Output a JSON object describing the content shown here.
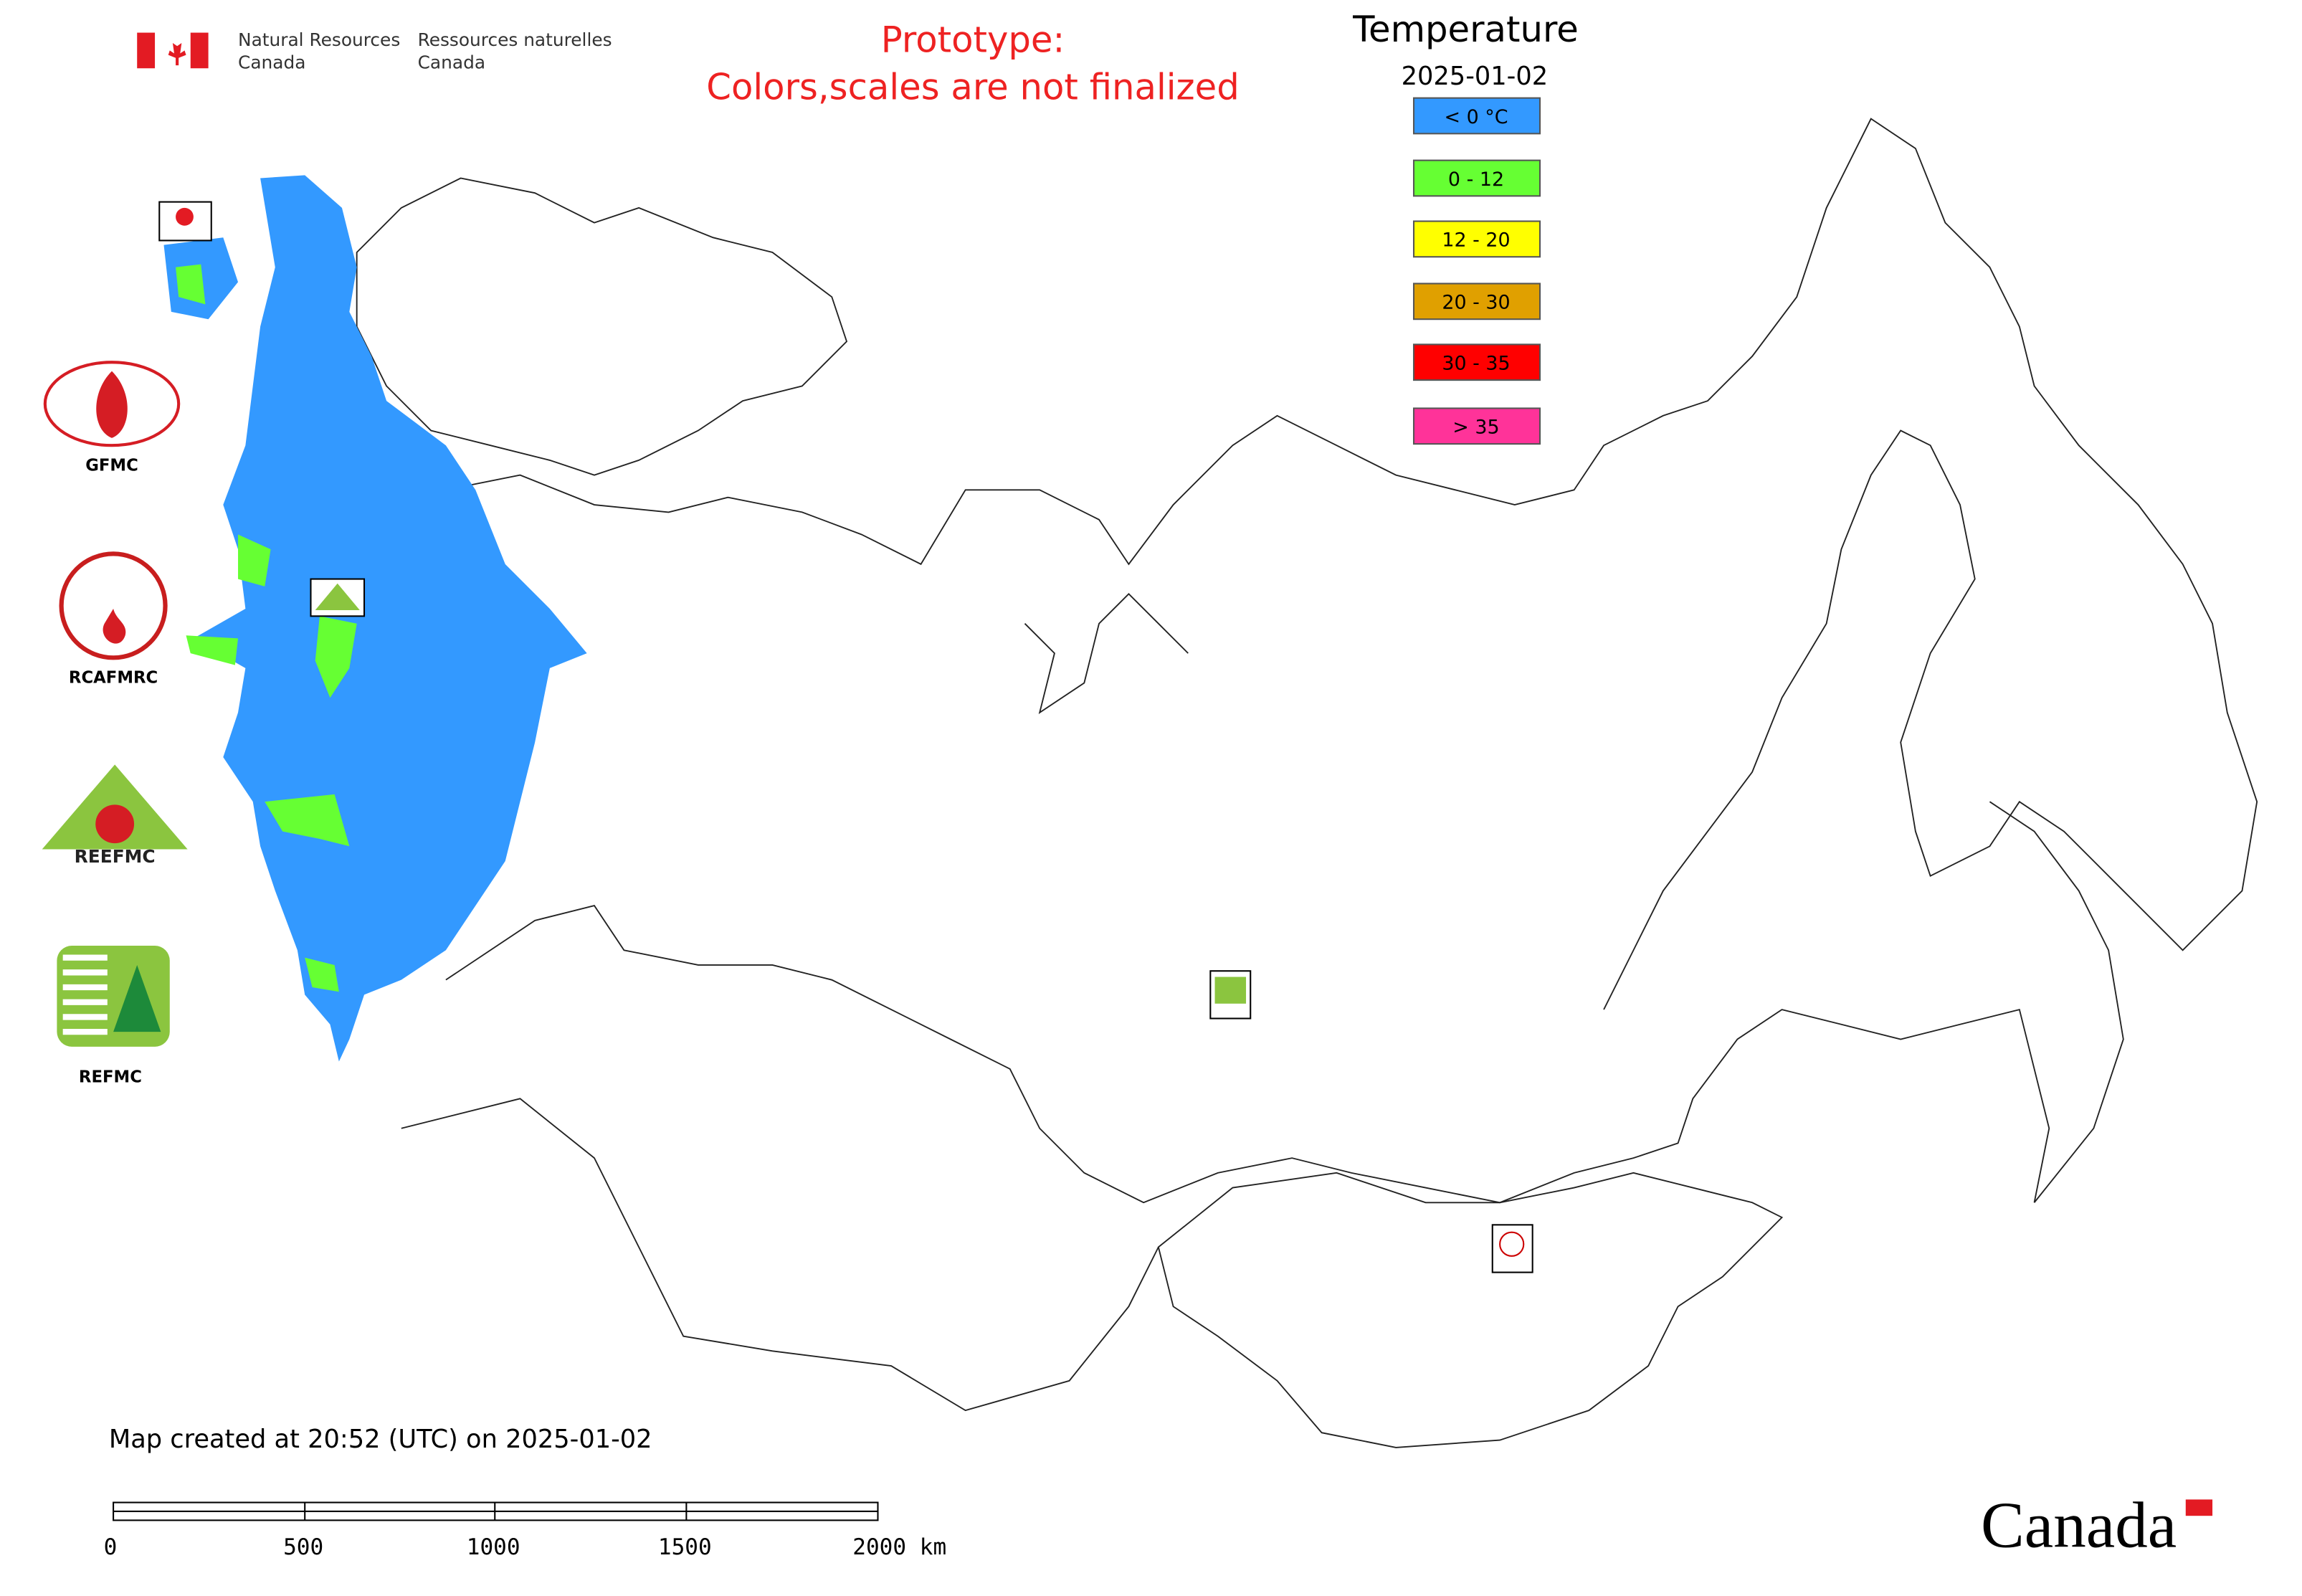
{
  "header": {
    "agency_en": [
      "Natural Resources",
      "Canada"
    ],
    "agency_fr": [
      "Ressources naturelles",
      "Canada"
    ]
  },
  "notice": [
    "Prototype:",
    "Colors,scales are not finalized"
  ],
  "legend": {
    "title": "Temperature",
    "date": "2025-01-02",
    "items": [
      {
        "label": "< 0 °C",
        "color": "#3399ff"
      },
      {
        "label": "0 - 12",
        "color": "#66ff33"
      },
      {
        "label": "12 - 20",
        "color": "#ffff00"
      },
      {
        "label": "20 - 30",
        "color": "#e0a000"
      },
      {
        "label": "30 - 35",
        "color": "#ff0000"
      },
      {
        "label": "> 35",
        "color": "#ff3399"
      }
    ]
  },
  "logos": [
    {
      "label": "GFMC"
    },
    {
      "label": "RCAFMRC"
    },
    {
      "text": "REEFMC"
    },
    {
      "label": "REFMC"
    }
  ],
  "footer": "Map created at 20:52 (UTC) on 2025-01-02",
  "scale_bar": [
    "0",
    "500",
    "1000",
    "1500",
    "2000 km"
  ],
  "wordmark": "Canada"
}
